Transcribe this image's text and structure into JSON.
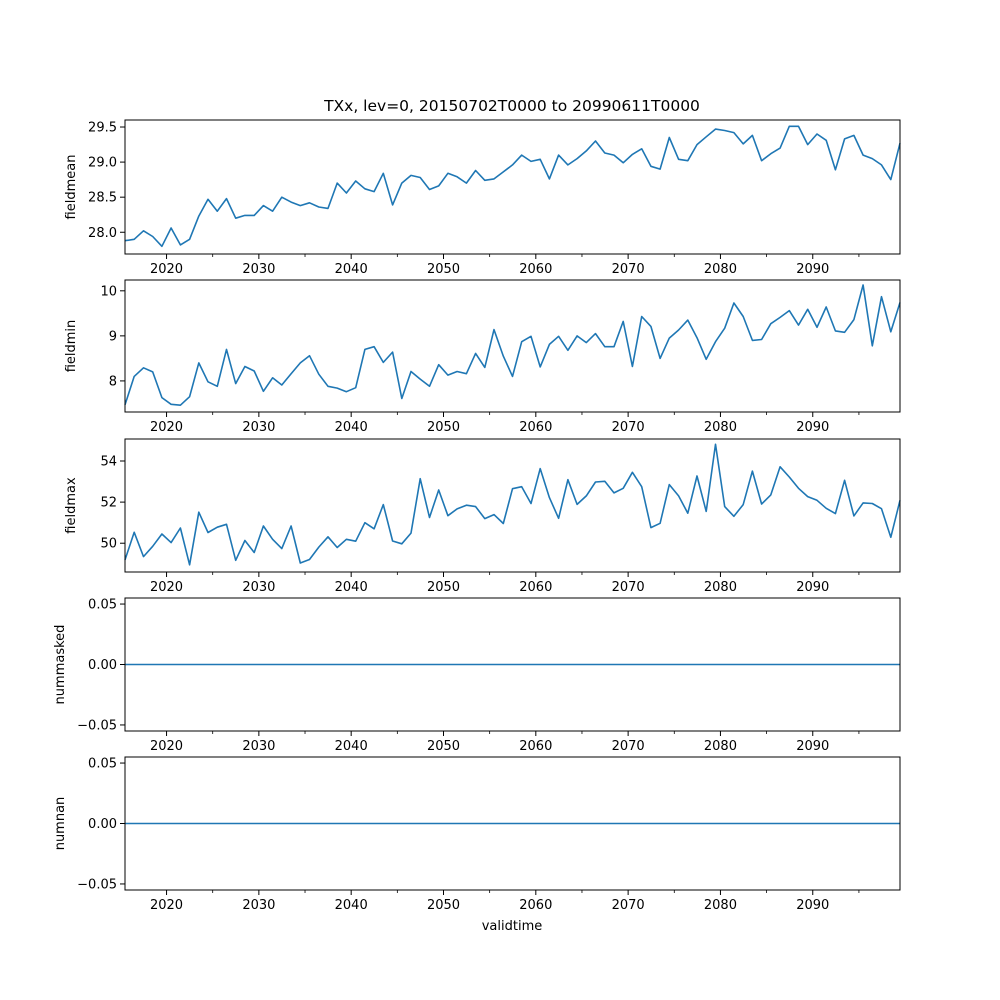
{
  "chart_data": {
    "type": "line",
    "title": "TXx, lev=0, 20150702T0000 to 20990611T0000",
    "xlabel": "validtime",
    "x_start_year": 2015,
    "x_count": 85,
    "xlim": [
      2015.5,
      2099.45
    ],
    "xticks": [
      2020,
      2030,
      2040,
      2050,
      2060,
      2070,
      2080,
      2090
    ],
    "xtick_labels": [
      "2020",
      "2030",
      "2040",
      "2050",
      "2060",
      "2070",
      "2080",
      "2090"
    ],
    "xminor": [
      2025,
      2035,
      2045,
      2055,
      2065,
      2075,
      2085,
      2095
    ],
    "line_color": "#1f77b4",
    "grid": false,
    "panels": [
      {
        "ylabel": "fieldmean",
        "ylim": [
          27.69,
          29.6
        ],
        "yticks": [
          28.0,
          28.5,
          29.0,
          29.5
        ],
        "ytick_labels": [
          "28.0",
          "28.5",
          "29.0",
          "29.5"
        ],
        "values": [
          27.88,
          27.9,
          28.02,
          27.94,
          27.8,
          28.06,
          27.82,
          27.9,
          28.23,
          28.47,
          28.3,
          28.48,
          28.2,
          28.24,
          28.24,
          28.38,
          28.3,
          28.5,
          28.43,
          28.38,
          28.42,
          28.36,
          28.34,
          28.7,
          28.56,
          28.73,
          28.62,
          28.58,
          28.84,
          28.39,
          28.7,
          28.81,
          28.78,
          28.61,
          28.66,
          28.84,
          28.79,
          28.7,
          28.88,
          28.74,
          28.76,
          28.86,
          28.96,
          29.1,
          29.01,
          29.04,
          28.76,
          29.1,
          28.96,
          29.05,
          29.16,
          29.3,
          29.13,
          29.1,
          28.99,
          29.11,
          29.19,
          28.94,
          28.9,
          29.35,
          29.04,
          29.02,
          29.25,
          29.36,
          29.47,
          29.45,
          29.42,
          29.26,
          29.38,
          29.02,
          29.12,
          29.2,
          29.51,
          29.51,
          29.25,
          29.4,
          29.31,
          28.89,
          29.33,
          29.38,
          29.1,
          29.05,
          28.96,
          28.75,
          29.27
        ]
      },
      {
        "ylabel": "fieldmin",
        "ylim": [
          7.31,
          10.24
        ],
        "yticks": [
          8,
          9,
          10
        ],
        "ytick_labels": [
          "8",
          "9",
          "10"
        ],
        "values": [
          7.47,
          8.1,
          8.29,
          8.2,
          7.63,
          7.48,
          7.46,
          7.65,
          8.4,
          7.98,
          7.88,
          8.7,
          7.94,
          8.32,
          8.22,
          7.77,
          8.07,
          7.91,
          8.16,
          8.4,
          8.56,
          8.15,
          7.88,
          7.84,
          7.76,
          7.85,
          8.7,
          8.76,
          8.41,
          8.64,
          7.61,
          8.21,
          8.04,
          7.88,
          8.36,
          8.13,
          8.21,
          8.16,
          8.61,
          8.3,
          9.14,
          8.55,
          8.1,
          8.87,
          8.99,
          8.31,
          8.81,
          8.99,
          8.68,
          9.0,
          8.85,
          9.05,
          8.76,
          8.76,
          9.32,
          8.32,
          9.43,
          9.21,
          8.5,
          8.95,
          9.13,
          9.35,
          8.96,
          8.48,
          8.87,
          9.17,
          9.73,
          9.43,
          8.9,
          8.92,
          9.27,
          9.41,
          9.56,
          9.24,
          9.59,
          9.19,
          9.64,
          9.11,
          9.08,
          9.36,
          10.13,
          8.78,
          9.87,
          9.09,
          9.74
        ]
      },
      {
        "ylabel": "fieldmax",
        "ylim": [
          48.6,
          55.07
        ],
        "yticks": [
          50,
          52,
          54
        ],
        "ytick_labels": [
          "50",
          "52",
          "54"
        ],
        "values": [
          49.19,
          50.53,
          49.35,
          49.85,
          50.45,
          50.03,
          50.74,
          48.95,
          51.51,
          50.52,
          50.78,
          50.92,
          49.17,
          50.13,
          49.55,
          50.84,
          50.19,
          49.74,
          50.84,
          49.04,
          49.21,
          49.81,
          50.31,
          49.79,
          50.19,
          50.1,
          51.0,
          50.7,
          51.88,
          50.11,
          49.97,
          50.49,
          53.14,
          51.25,
          52.59,
          51.34,
          51.67,
          51.85,
          51.78,
          51.2,
          51.39,
          50.96,
          52.65,
          52.75,
          51.93,
          53.63,
          52.22,
          51.21,
          53.09,
          51.89,
          52.3,
          52.98,
          53.01,
          52.45,
          52.67,
          53.45,
          52.75,
          50.76,
          50.97,
          52.85,
          52.3,
          51.46,
          53.27,
          51.55,
          54.81,
          51.78,
          51.31,
          51.88,
          53.51,
          51.91,
          52.35,
          53.72,
          53.22,
          52.67,
          52.27,
          52.09,
          51.7,
          51.44,
          53.06,
          51.33,
          51.96,
          51.93,
          51.68,
          50.29,
          52.09
        ]
      },
      {
        "ylabel": "nummasked",
        "ylim": [
          -0.055,
          0.055
        ],
        "yticks": [
          -0.05,
          0.0,
          0.05
        ],
        "ytick_labels": [
          "−0.05",
          "0.00",
          "0.05"
        ],
        "values": [
          0,
          0,
          0,
          0,
          0,
          0,
          0,
          0,
          0,
          0,
          0,
          0,
          0,
          0,
          0,
          0,
          0,
          0,
          0,
          0,
          0,
          0,
          0,
          0,
          0,
          0,
          0,
          0,
          0,
          0,
          0,
          0,
          0,
          0,
          0,
          0,
          0,
          0,
          0,
          0,
          0,
          0,
          0,
          0,
          0,
          0,
          0,
          0,
          0,
          0,
          0,
          0,
          0,
          0,
          0,
          0,
          0,
          0,
          0,
          0,
          0,
          0,
          0,
          0,
          0,
          0,
          0,
          0,
          0,
          0,
          0,
          0,
          0,
          0,
          0,
          0,
          0,
          0,
          0,
          0,
          0,
          0,
          0,
          0,
          0
        ]
      },
      {
        "ylabel": "numnan",
        "ylim": [
          -0.055,
          0.055
        ],
        "yticks": [
          -0.05,
          0.0,
          0.05
        ],
        "ytick_labels": [
          "−0.05",
          "0.00",
          "0.05"
        ],
        "values": [
          0,
          0,
          0,
          0,
          0,
          0,
          0,
          0,
          0,
          0,
          0,
          0,
          0,
          0,
          0,
          0,
          0,
          0,
          0,
          0,
          0,
          0,
          0,
          0,
          0,
          0,
          0,
          0,
          0,
          0,
          0,
          0,
          0,
          0,
          0,
          0,
          0,
          0,
          0,
          0,
          0,
          0,
          0,
          0,
          0,
          0,
          0,
          0,
          0,
          0,
          0,
          0,
          0,
          0,
          0,
          0,
          0,
          0,
          0,
          0,
          0,
          0,
          0,
          0,
          0,
          0,
          0,
          0,
          0,
          0,
          0,
          0,
          0,
          0,
          0,
          0,
          0,
          0,
          0,
          0,
          0,
          0,
          0,
          0,
          0
        ]
      }
    ]
  }
}
